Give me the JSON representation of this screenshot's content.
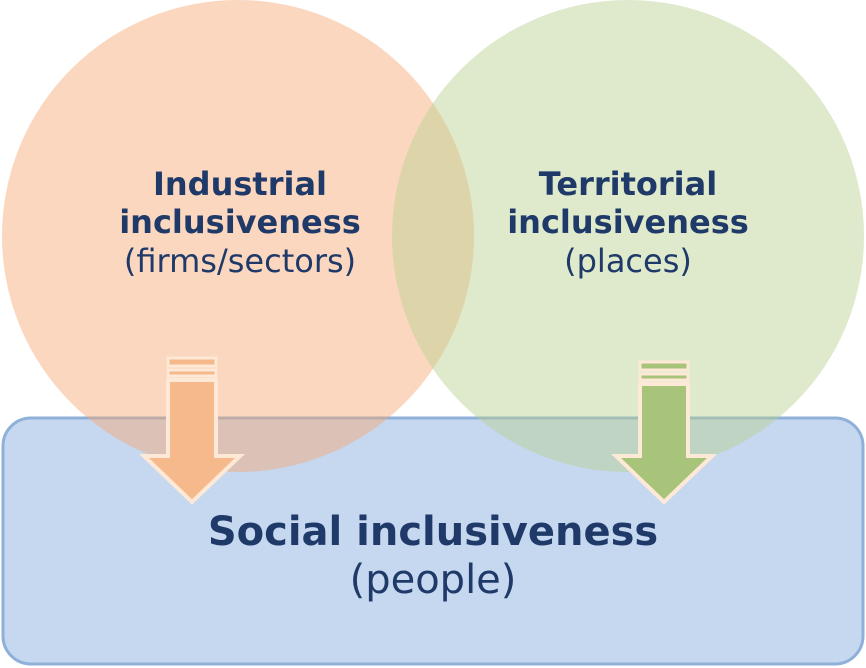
{
  "colors": {
    "industrial_fill": "#f9caa8",
    "territorial_fill": "#d5e3bf",
    "social_fill": "#c6d8ef",
    "social_border": "#8fb0d8",
    "arrow_orange": "#f6b98b",
    "arrow_green": "#a8c47a",
    "arrow_outline": "#fde9d6",
    "text": "#1f3a68"
  },
  "industrial": {
    "title_line1": "Industrial",
    "title_line2": "inclusiveness",
    "subtitle": "(firms/sectors)"
  },
  "territorial": {
    "title_line1": "Territorial",
    "title_line2": "inclusiveness",
    "subtitle": "(places)"
  },
  "social": {
    "title": "Social inclusiveness",
    "subtitle": "(people)"
  }
}
